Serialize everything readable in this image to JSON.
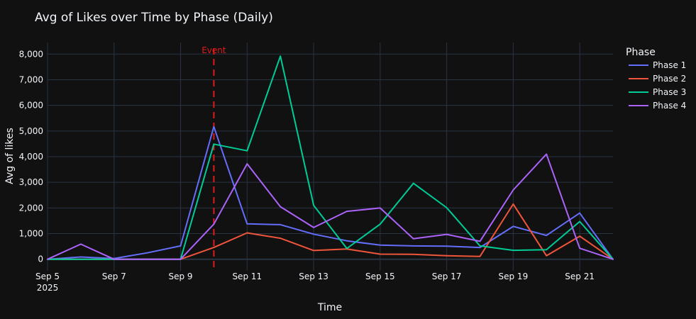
{
  "chart_data": {
    "type": "line",
    "title": "Avg of Likes over Time by Phase (Daily)",
    "xlabel": "Time",
    "ylabel": "Avg of likes",
    "ylim": [
      -450,
      8450
    ],
    "xlim_days": [
      0,
      17
    ],
    "x_ticks": [
      {
        "day": 0,
        "label": "Sep 5",
        "sublabel": "2025"
      },
      {
        "day": 2,
        "label": "Sep 7"
      },
      {
        "day": 4,
        "label": "Sep 9"
      },
      {
        "day": 6,
        "label": "Sep 11"
      },
      {
        "day": 8,
        "label": "Sep 13"
      },
      {
        "day": 10,
        "label": "Sep 15"
      },
      {
        "day": 12,
        "label": "Sep 17"
      },
      {
        "day": 14,
        "label": "Sep 19"
      },
      {
        "day": 16,
        "label": "Sep 21"
      }
    ],
    "y_ticks": [
      {
        "value": 0,
        "label": "0"
      },
      {
        "value": 1000,
        "label": "1,000"
      },
      {
        "value": 2000,
        "label": "2,000"
      },
      {
        "value": 3000,
        "label": "3,000"
      },
      {
        "value": 4000,
        "label": "4,000"
      },
      {
        "value": 5000,
        "label": "5,000"
      },
      {
        "value": 6000,
        "label": "6,000"
      },
      {
        "value": 7000,
        "label": "7,000"
      },
      {
        "value": 8000,
        "label": "8,000"
      }
    ],
    "x": [
      "Sep 5",
      "Sep 6",
      "Sep 7",
      "Sep 8",
      "Sep 9",
      "Sep 10",
      "Sep 11",
      "Sep 12",
      "Sep 13",
      "Sep 14",
      "Sep 15",
      "Sep 16",
      "Sep 17",
      "Sep 18",
      "Sep 19",
      "Sep 20",
      "Sep 21",
      "Sep 22"
    ],
    "series": [
      {
        "name": "Phase 1",
        "color": "#636efa",
        "values": [
          0,
          90,
          30,
          250,
          520,
          5170,
          1380,
          1350,
          980,
          720,
          550,
          520,
          510,
          460,
          1280,
          930,
          1800,
          0
        ]
      },
      {
        "name": "Phase 2",
        "color": "#ef553b",
        "values": [
          0,
          0,
          0,
          0,
          0,
          460,
          1030,
          820,
          340,
          400,
          200,
          190,
          140,
          110,
          2150,
          140,
          900,
          0
        ]
      },
      {
        "name": "Phase 3",
        "color": "#00cc96",
        "values": [
          0,
          0,
          0,
          0,
          0,
          4490,
          4230,
          7920,
          2100,
          420,
          1370,
          2960,
          2010,
          520,
          350,
          370,
          1470,
          0
        ]
      },
      {
        "name": "Phase 4",
        "color": "#ab63fa",
        "values": [
          0,
          590,
          0,
          0,
          0,
          1370,
          3720,
          2050,
          1240,
          1870,
          2000,
          800,
          970,
          700,
          2700,
          4100,
          430,
          0
        ]
      }
    ],
    "legend": {
      "title": "Phase",
      "placement": "right"
    },
    "annotations": [
      {
        "type": "vline",
        "day": 5,
        "label": "Event",
        "color": "#e0191b"
      }
    ]
  }
}
